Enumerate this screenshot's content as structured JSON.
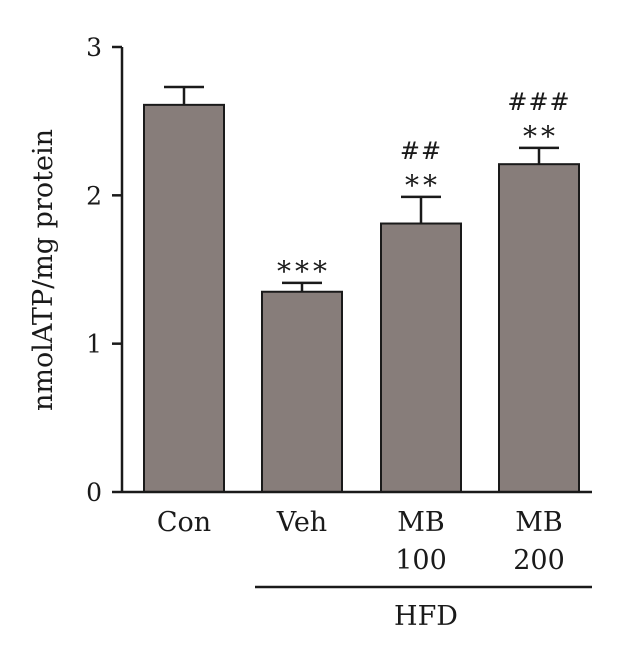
{
  "chart_data": {
    "type": "bar",
    "ylabel": "nmolATP/mg protein",
    "xlabel": "",
    "ylim": [
      0,
      3
    ],
    "yticks": [
      0,
      1,
      2,
      3
    ],
    "grid": false,
    "categories": [
      {
        "label_lines": [
          "Con"
        ]
      },
      {
        "label_lines": [
          "Veh"
        ]
      },
      {
        "label_lines": [
          "MB",
          "100"
        ]
      },
      {
        "label_lines": [
          "MB",
          "200"
        ]
      }
    ],
    "values": [
      2.61,
      1.35,
      1.81,
      2.21
    ],
    "errors": [
      0.12,
      0.06,
      0.18,
      0.11
    ],
    "significance": [
      {
        "hash": "",
        "stars": ""
      },
      {
        "hash": "",
        "stars": "***"
      },
      {
        "hash": "##",
        "stars": "**"
      },
      {
        "hash": "###",
        "stars": "**"
      }
    ],
    "group": {
      "label": "HFD",
      "from": 1,
      "to": 3
    },
    "bar_color": "#877d7a",
    "edge_color": "#1a1a1a"
  }
}
